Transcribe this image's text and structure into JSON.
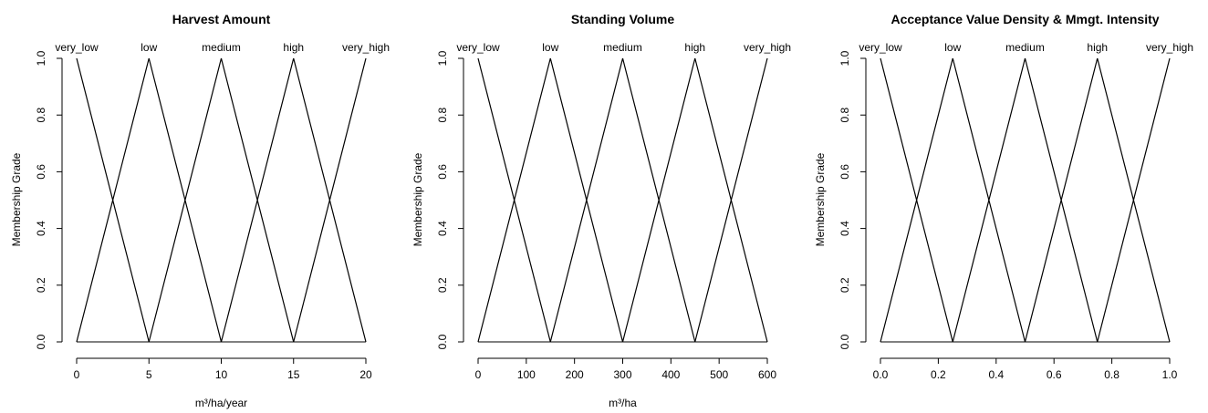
{
  "chart_data": [
    {
      "type": "line",
      "title": "Harvest Amount",
      "xlabel": "m³/ha/year",
      "ylabel": "Membership Grade",
      "xlim": [
        0,
        20
      ],
      "ylim": [
        0,
        1
      ],
      "x_ticks": [
        "0",
        "5",
        "10",
        "15",
        "20"
      ],
      "x_tick_values": [
        0,
        5,
        10,
        15,
        20
      ],
      "y_ticks": [
        "0.0",
        "0.2",
        "0.4",
        "0.6",
        "0.8",
        "1.0"
      ],
      "y_tick_values": [
        0,
        0.2,
        0.4,
        0.6,
        0.8,
        1.0
      ],
      "grid": false,
      "series": [
        {
          "name": "very_low",
          "x": [
            0,
            5
          ],
          "y": [
            1,
            0
          ]
        },
        {
          "name": "low",
          "x": [
            0,
            5,
            10
          ],
          "y": [
            0,
            1,
            0
          ]
        },
        {
          "name": "medium",
          "x": [
            5,
            10,
            15
          ],
          "y": [
            0,
            1,
            0
          ]
        },
        {
          "name": "high",
          "x": [
            10,
            15,
            20
          ],
          "y": [
            0,
            1,
            0
          ]
        },
        {
          "name": "very_high",
          "x": [
            15,
            20
          ],
          "y": [
            0,
            1
          ]
        }
      ],
      "baseline": {
        "x": [
          0,
          20
        ],
        "y": [
          0,
          0
        ]
      }
    },
    {
      "type": "line",
      "title": "Standing Volume",
      "xlabel": "m³/ha",
      "ylabel": "Membership Grade",
      "xlim": [
        0,
        600
      ],
      "ylim": [
        0,
        1
      ],
      "x_ticks": [
        "0",
        "100",
        "200",
        "300",
        "400",
        "500",
        "600"
      ],
      "x_tick_values": [
        0,
        100,
        200,
        300,
        400,
        500,
        600
      ],
      "y_ticks": [
        "0.0",
        "0.2",
        "0.4",
        "0.6",
        "0.8",
        "1.0"
      ],
      "y_tick_values": [
        0,
        0.2,
        0.4,
        0.6,
        0.8,
        1.0
      ],
      "grid": false,
      "series": [
        {
          "name": "very_low",
          "x": [
            0,
            150
          ],
          "y": [
            1,
            0
          ]
        },
        {
          "name": "low",
          "x": [
            0,
            150,
            300
          ],
          "y": [
            0,
            1,
            0
          ]
        },
        {
          "name": "medium",
          "x": [
            150,
            300,
            450
          ],
          "y": [
            0,
            1,
            0
          ]
        },
        {
          "name": "high",
          "x": [
            300,
            450,
            600
          ],
          "y": [
            0,
            1,
            0
          ]
        },
        {
          "name": "very_high",
          "x": [
            450,
            600
          ],
          "y": [
            0,
            1
          ]
        }
      ],
      "baseline": {
        "x": [
          0,
          600
        ],
        "y": [
          0,
          0
        ]
      }
    },
    {
      "type": "line",
      "title": "Acceptance Value Density & Mmgt. Intensity",
      "xlabel": "",
      "ylabel": "Membership Grade",
      "xlim": [
        0,
        1
      ],
      "ylim": [
        0,
        1
      ],
      "x_ticks": [
        "0.0",
        "0.2",
        "0.4",
        "0.6",
        "0.8",
        "1.0"
      ],
      "x_tick_values": [
        0,
        0.2,
        0.4,
        0.6,
        0.8,
        1.0
      ],
      "y_ticks": [
        "0.0",
        "0.2",
        "0.4",
        "0.6",
        "0.8",
        "1.0"
      ],
      "y_tick_values": [
        0,
        0.2,
        0.4,
        0.6,
        0.8,
        1.0
      ],
      "grid": false,
      "series": [
        {
          "name": "very_low",
          "x": [
            0,
            0.25
          ],
          "y": [
            1,
            0
          ]
        },
        {
          "name": "low",
          "x": [
            0,
            0.25,
            0.5
          ],
          "y": [
            0,
            1,
            0
          ]
        },
        {
          "name": "medium",
          "x": [
            0.25,
            0.5,
            0.75
          ],
          "y": [
            0,
            1,
            0
          ]
        },
        {
          "name": "high",
          "x": [
            0.5,
            0.75,
            1.0
          ],
          "y": [
            0,
            1,
            0
          ]
        },
        {
          "name": "very_high",
          "x": [
            0.75,
            1.0
          ],
          "y": [
            0,
            1
          ]
        }
      ],
      "baseline": {
        "x": [
          0,
          1
        ],
        "y": [
          0,
          0
        ]
      }
    }
  ],
  "colors": {
    "line": "#000000",
    "background": "#ffffff"
  }
}
